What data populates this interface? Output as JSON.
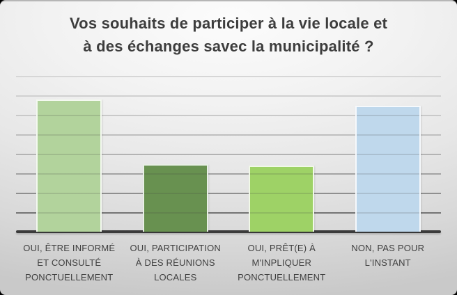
{
  "slide": {
    "title_lines": [
      "Vos souhaits de participer à la vie locale et",
      "à des échanges savec la municipalité ?"
    ]
  },
  "colors": {
    "title_text": "#3d3d3d",
    "label_text": "#3f3f3f",
    "axis_baseline": "#3b3b3b",
    "bar_border": "#ffffff",
    "background_top": "#fcfcfc",
    "background_bottom": "#c9c9c9"
  },
  "chart_data": {
    "type": "bar",
    "title": "Vos souhaits de participer à la vie locale et à des échanges savec la municipalité ?",
    "xlabel": "",
    "ylabel": "",
    "legend": "none",
    "categories": [
      "OUI, ÊTRE INFORMÉ ET CONSULTÉ PONCTUELLEMENT",
      "OUI, PARTICIPATION À DES RÉUNIONS LOCALES",
      "OUI, PRÊT(E) À M'INPLIQUER PONCTUELLEMENT",
      "NON, PAS POUR L'INSTANT"
    ],
    "category_lines": [
      [
        "OUI, ÊTRE INFORMÉ",
        "ET CONSULTÉ",
        "PONCTUELLEMENT"
      ],
      [
        "OUI, PARTICIPATION",
        "À DES RÉUNIONS",
        "LOCALES"
      ],
      [
        "OUI, PRÊT(E) À",
        "M'INPLIQUER",
        "PONCTUELLEMENT"
      ],
      [
        "NON, PAS POUR",
        "L'INSTANT"
      ]
    ],
    "values": [
      6.8,
      3.45,
      3.4,
      6.45
    ],
    "value_note": "no numeric axis labels visible; values estimated in gridline units (1 unit per gridline, spacing 28px)",
    "ylim": [
      0,
      8.5
    ],
    "grid": true,
    "gridline_count": 8,
    "bar_colors": [
      "#b2d39c",
      "#689150",
      "#9ed266",
      "#bfd8ec"
    ],
    "gridline_colors": [
      "#d6d6d6",
      "#d0d0d0",
      "#c9c9c9",
      "#bfbfbf",
      "#b3b3b3",
      "#a3a3a3",
      "#8f8f8f",
      "#747474"
    ],
    "baseline_color": "#3b3b3b"
  }
}
